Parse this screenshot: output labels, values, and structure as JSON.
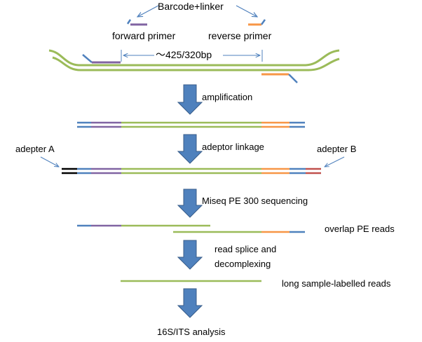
{
  "labels": {
    "barcode_linker": "Barcode+linker",
    "forward_primer": "forward primer",
    "reverse_primer": "reverse primer",
    "amplicon_length": "～425/320bp",
    "adapter_a": "adepter A",
    "adapter_b": "adepter B",
    "overlap_reads": "overlap PE reads",
    "long_reads": "long sample-labelled reads"
  },
  "steps": {
    "amplification": "amplification",
    "adaptor_linkage": "adeptor linkage",
    "sequencing": "Miseq PE 300 sequencing",
    "splice_line1": "read splice and",
    "splice_line2": "decomplexing",
    "analysis": "16S/ITS analysis"
  },
  "colors": {
    "dna": "#9bbb59",
    "barcode": "#4f81bd",
    "forward_primer": "#8064a2",
    "reverse_primer": "#f79646",
    "adapter_a": "#000000",
    "adapter_b": "#c0504d",
    "arrow": "#4f81bd",
    "pointer": "#4f81bd"
  }
}
